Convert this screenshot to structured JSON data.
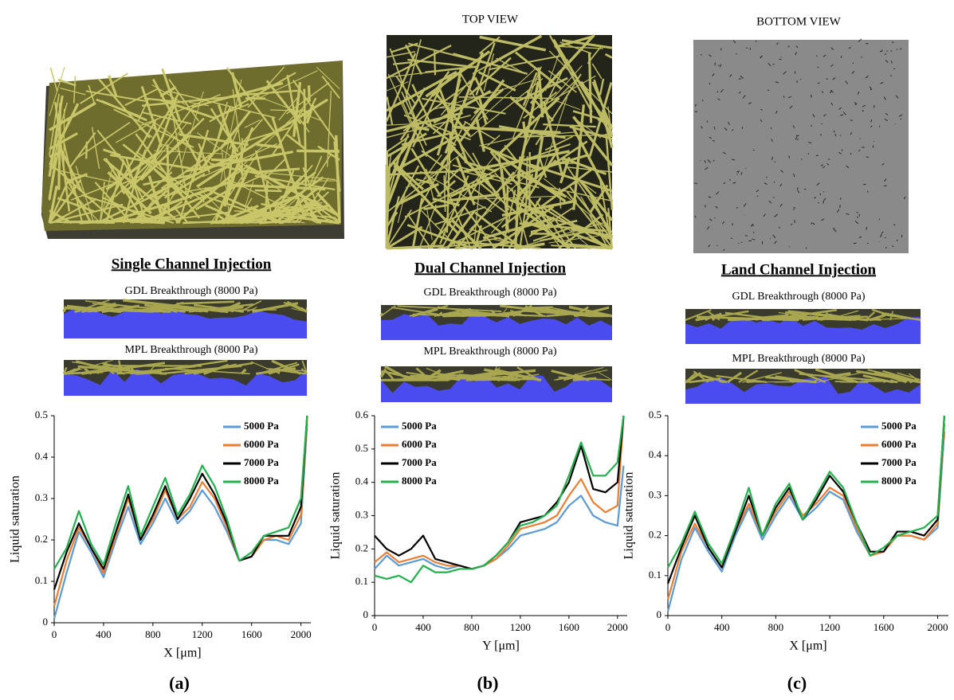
{
  "figure": {
    "top_view_label": "TOP VIEW",
    "bottom_view_label": "BOTTOM VIEW",
    "panels": [
      {
        "title": "Single Channel Injection",
        "gdl_label": "GDL Breakthrough (8000 Pa)",
        "mpl_label": "MPL Breakthrough (8000 Pa)",
        "caption": "(a)"
      },
      {
        "title": "Dual Channel Injection",
        "gdl_label": "GDL Breakthrough (8000 Pa)",
        "mpl_label": "MPL Breakthrough (8000 Pa)",
        "caption": "(b)"
      },
      {
        "title": "Land Channel Injection",
        "gdl_label": "GDL Breakthrough (8000 Pa)",
        "mpl_label": "MPL Breakthrough (8000 Pa)",
        "caption": "(c)"
      }
    ]
  },
  "chart_data": [
    {
      "type": "line",
      "x_label": "X [μm]",
      "y_label": "Liquid saturation",
      "legend": "upper right",
      "x": [
        0,
        100,
        200,
        300,
        400,
        500,
        600,
        700,
        800,
        900,
        1000,
        1100,
        1200,
        1300,
        1400,
        1500,
        1600,
        1700,
        1800,
        1900,
        2000,
        2050
      ],
      "xlim": [
        0,
        2080
      ],
      "xticks": [
        0,
        400,
        800,
        1200,
        1600,
        2000
      ],
      "ylim": [
        0,
        0.5
      ],
      "yticks": [
        0,
        0.1,
        0.2,
        0.3,
        0.4,
        0.5
      ],
      "series": [
        {
          "name": "5000 Pa",
          "color": "#5b9bd5",
          "values": [
            0.01,
            0.12,
            0.22,
            0.17,
            0.11,
            0.2,
            0.28,
            0.19,
            0.24,
            0.3,
            0.24,
            0.27,
            0.32,
            0.28,
            0.22,
            0.15,
            0.16,
            0.2,
            0.2,
            0.19,
            0.24,
            0.48
          ]
        },
        {
          "name": "6000 Pa",
          "color": "#ed7d31",
          "values": [
            0.04,
            0.15,
            0.23,
            0.18,
            0.12,
            0.21,
            0.3,
            0.2,
            0.25,
            0.32,
            0.25,
            0.28,
            0.34,
            0.3,
            0.23,
            0.15,
            0.16,
            0.2,
            0.21,
            0.2,
            0.26,
            0.49
          ]
        },
        {
          "name": "7000 Pa",
          "color": "#000000",
          "values": [
            0.08,
            0.17,
            0.24,
            0.18,
            0.13,
            0.22,
            0.31,
            0.2,
            0.26,
            0.33,
            0.25,
            0.3,
            0.36,
            0.31,
            0.24,
            0.15,
            0.16,
            0.21,
            0.21,
            0.21,
            0.28,
            0.5
          ]
        },
        {
          "name": "8000 Pa",
          "color": "#22b14c",
          "values": [
            0.13,
            0.18,
            0.27,
            0.19,
            0.14,
            0.24,
            0.33,
            0.21,
            0.28,
            0.35,
            0.26,
            0.31,
            0.38,
            0.33,
            0.25,
            0.15,
            0.17,
            0.21,
            0.22,
            0.23,
            0.3,
            0.5
          ]
        }
      ]
    },
    {
      "type": "line",
      "x_label": "Y [μm]",
      "y_label": "Liquid saturation",
      "legend": "upper left",
      "x": [
        0,
        100,
        200,
        300,
        400,
        500,
        600,
        700,
        800,
        900,
        1000,
        1100,
        1200,
        1300,
        1400,
        1500,
        1600,
        1700,
        1800,
        1900,
        2000,
        2050
      ],
      "xlim": [
        0,
        2080
      ],
      "xticks": [
        0,
        400,
        800,
        1200,
        1600,
        2000
      ],
      "ylim": [
        0,
        0.6
      ],
      "yticks": [
        0,
        0.1,
        0.2,
        0.3,
        0.4,
        0.5,
        0.6
      ],
      "series": [
        {
          "name": "5000 Pa",
          "color": "#5b9bd5",
          "values": [
            0.14,
            0.18,
            0.15,
            0.16,
            0.17,
            0.15,
            0.14,
            0.15,
            0.14,
            0.15,
            0.17,
            0.2,
            0.24,
            0.25,
            0.26,
            0.28,
            0.33,
            0.36,
            0.3,
            0.28,
            0.27,
            0.45
          ]
        },
        {
          "name": "6000 Pa",
          "color": "#ed7d31",
          "values": [
            0.16,
            0.19,
            0.16,
            0.17,
            0.18,
            0.16,
            0.15,
            0.15,
            0.14,
            0.15,
            0.17,
            0.21,
            0.26,
            0.27,
            0.28,
            0.3,
            0.36,
            0.41,
            0.34,
            0.31,
            0.33,
            0.6
          ]
        },
        {
          "name": "7000 Pa",
          "color": "#000000",
          "values": [
            0.24,
            0.2,
            0.18,
            0.2,
            0.24,
            0.17,
            0.16,
            0.15,
            0.14,
            0.15,
            0.18,
            0.22,
            0.28,
            0.29,
            0.3,
            0.34,
            0.4,
            0.51,
            0.38,
            0.37,
            0.4,
            0.6
          ]
        },
        {
          "name": "8000 Pa",
          "color": "#22b14c",
          "values": [
            0.12,
            0.11,
            0.12,
            0.1,
            0.15,
            0.13,
            0.13,
            0.14,
            0.14,
            0.15,
            0.18,
            0.22,
            0.27,
            0.28,
            0.3,
            0.33,
            0.42,
            0.52,
            0.42,
            0.42,
            0.46,
            0.6
          ]
        }
      ]
    },
    {
      "type": "line",
      "x_label": "X [μm]",
      "y_label": "Liquid saturation",
      "legend": "upper right",
      "x": [
        0,
        100,
        200,
        300,
        400,
        500,
        600,
        700,
        800,
        900,
        1000,
        1100,
        1200,
        1300,
        1400,
        1500,
        1600,
        1700,
        1800,
        1900,
        2000,
        2050
      ],
      "xlim": [
        0,
        2080
      ],
      "xticks": [
        0,
        400,
        800,
        1200,
        1600,
        2000
      ],
      "ylim": [
        0,
        0.5
      ],
      "yticks": [
        0,
        0.1,
        0.2,
        0.3,
        0.4,
        0.5
      ],
      "series": [
        {
          "name": "5000 Pa",
          "color": "#5b9bd5",
          "values": [
            0.01,
            0.14,
            0.22,
            0.16,
            0.11,
            0.2,
            0.27,
            0.19,
            0.25,
            0.3,
            0.24,
            0.27,
            0.31,
            0.29,
            0.21,
            0.15,
            0.16,
            0.2,
            0.2,
            0.19,
            0.22,
            0.46
          ]
        },
        {
          "name": "6000 Pa",
          "color": "#ed7d31",
          "values": [
            0.04,
            0.16,
            0.23,
            0.17,
            0.12,
            0.21,
            0.28,
            0.2,
            0.26,
            0.31,
            0.25,
            0.28,
            0.32,
            0.3,
            0.22,
            0.15,
            0.16,
            0.2,
            0.2,
            0.19,
            0.23,
            0.48
          ]
        },
        {
          "name": "7000 Pa",
          "color": "#000000",
          "values": [
            0.08,
            0.17,
            0.25,
            0.17,
            0.12,
            0.21,
            0.3,
            0.2,
            0.27,
            0.32,
            0.24,
            0.29,
            0.35,
            0.31,
            0.23,
            0.16,
            0.16,
            0.21,
            0.21,
            0.2,
            0.24,
            0.5
          ]
        },
        {
          "name": "8000 Pa",
          "color": "#22b14c",
          "values": [
            0.12,
            0.18,
            0.26,
            0.18,
            0.13,
            0.22,
            0.32,
            0.2,
            0.28,
            0.33,
            0.24,
            0.3,
            0.36,
            0.32,
            0.23,
            0.15,
            0.17,
            0.2,
            0.21,
            0.22,
            0.25,
            0.5
          ]
        }
      ]
    }
  ]
}
